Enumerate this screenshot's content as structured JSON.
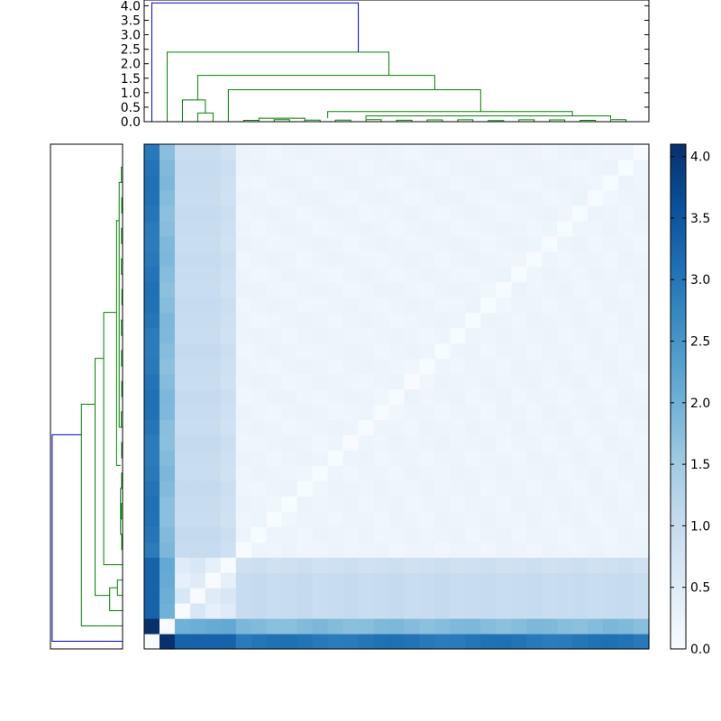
{
  "chart_data": {
    "type": "heatmap",
    "n": 33,
    "colormap": "Blues",
    "heatmap": {
      "range": [
        0,
        4.1
      ],
      "grid": false,
      "diagonal_value": 0.0
    },
    "colorbar": {
      "ticks": [
        0.0,
        0.5,
        1.0,
        1.5,
        2.0,
        2.5,
        3.0,
        3.5,
        4.0
      ],
      "tick_labels": [
        "0.0",
        "0.5",
        "1.0",
        "1.5",
        "2.0",
        "2.5",
        "3.0",
        "3.5",
        "4.0"
      ]
    },
    "top_dendrogram": {
      "ylim": [
        0,
        4.2
      ],
      "ticks": [
        0.0,
        0.5,
        1.0,
        1.5,
        2.0,
        2.5,
        3.0,
        3.5,
        4.0
      ],
      "tick_labels": [
        "0.0",
        "0.5",
        "1.0",
        "1.5",
        "2.0",
        "2.5",
        "3.0",
        "3.5",
        "4.0"
      ],
      "root_height": 4.1,
      "link_colors": {
        "root": "#0000cc",
        "cluster": "#008000"
      }
    },
    "left_dendrogram": {
      "link_colors": {
        "root": "#0000cc",
        "cluster": "#008000"
      }
    }
  }
}
